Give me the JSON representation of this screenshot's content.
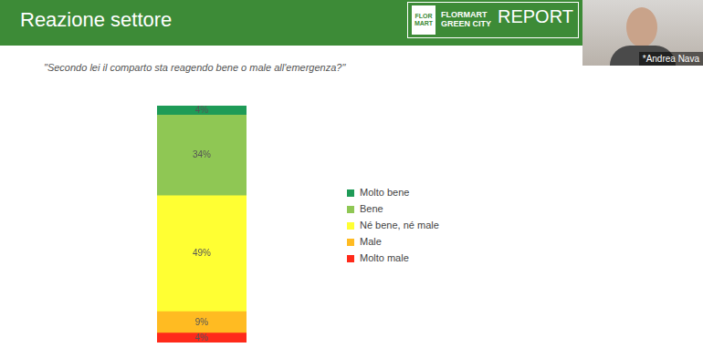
{
  "header": {
    "logo": [
      "FLOR",
      "MART"
    ],
    "brand": "FLORMART GREEN CITY",
    "report": "REPORT"
  },
  "speaker": "*Andrea Nava",
  "chart_data": {
    "type": "bar",
    "title": "Reazione settore",
    "subtitle": "\"Secondo lei il comparto sta reagendo bene o male all'emergenza?\"",
    "categories": [
      null
    ],
    "series": [
      {
        "name": "Molto bene",
        "color": "#1e9b57",
        "values": [
          4
        ],
        "value_labels": [
          "4%"
        ]
      },
      {
        "name": "Bene",
        "color": "#8fc754",
        "values": [
          34
        ],
        "value_labels": [
          "34%"
        ]
      },
      {
        "name": "Né bene, né male",
        "color": "#ffff33",
        "values": [
          49
        ],
        "value_labels": [
          "49%"
        ]
      },
      {
        "name": "Male",
        "color": "#ffbb22",
        "values": [
          9
        ],
        "value_labels": [
          "9%"
        ]
      },
      {
        "name": "Molto male",
        "color": "#ff2a1a",
        "values": [
          4
        ],
        "value_labels": [
          "4%"
        ]
      }
    ],
    "ylim": [
      0,
      100
    ],
    "stacked": true,
    "data_labels": true,
    "legend": "right",
    "tick_labels": false,
    "grid": false
  }
}
